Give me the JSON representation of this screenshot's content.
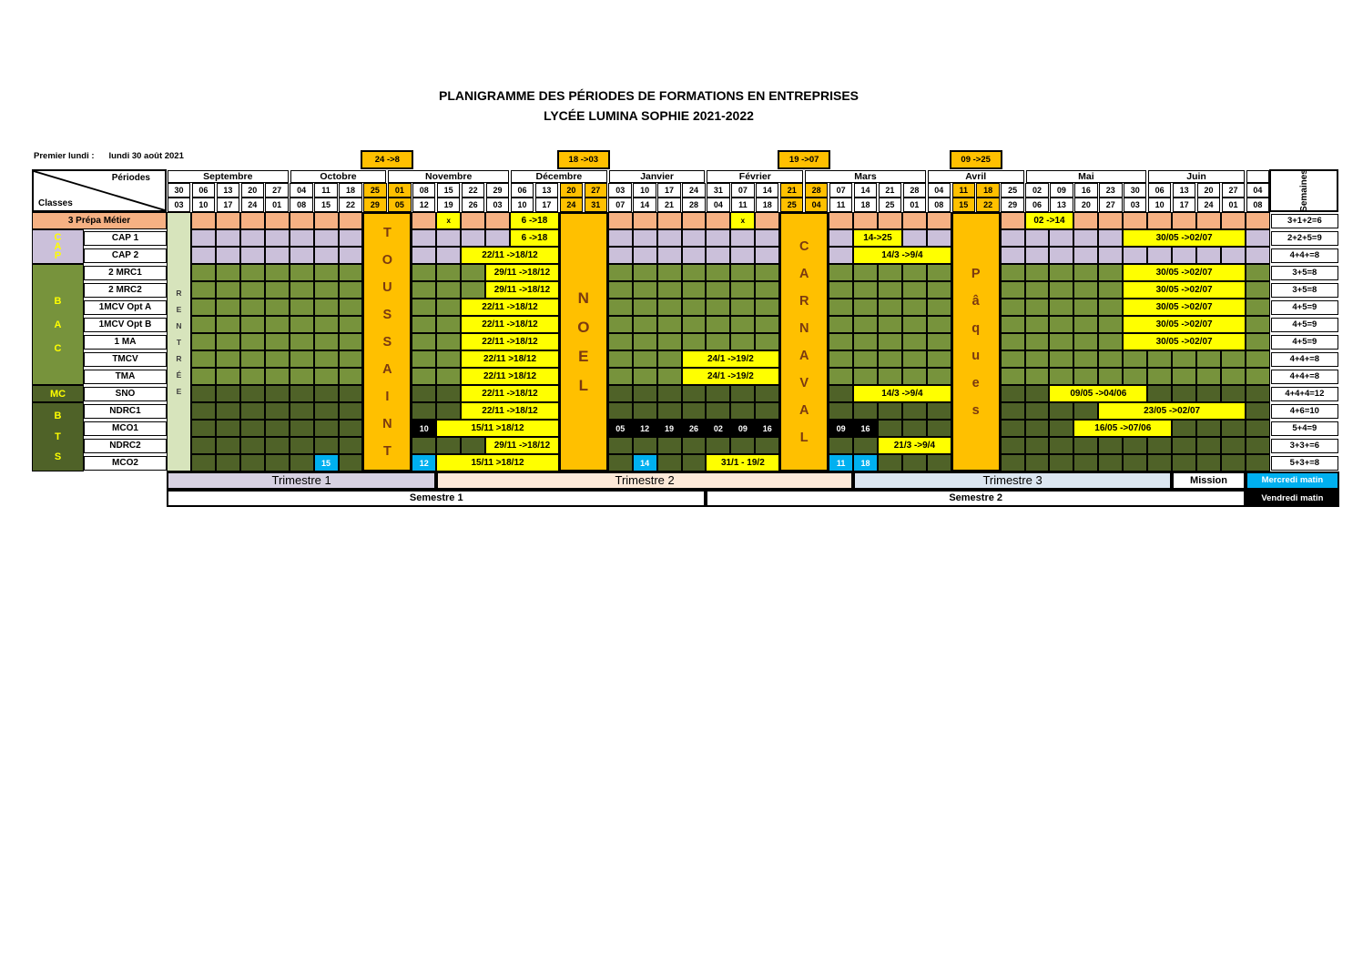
{
  "title": {
    "line1": "PLANIGRAMME DES PÉRIODES DE FORMATIONS EN ENTREPRISES",
    "line2": "LYCÉE LUMINA SOPHIE 2021-2022"
  },
  "first_monday": {
    "label": "Premier lundi :",
    "value": "lundi 30 août 2021"
  },
  "corner": {
    "top_label": "Périodes",
    "bottom_label": "Classes"
  },
  "semaines_header": "Semaines",
  "colors": {
    "salmon": "#F6B183",
    "purple": "#CBC0DA",
    "green": "#77933C",
    "dark_green": "#4F6228",
    "rentree_green": "#D7E4BC",
    "vacation_orange": "#FFC000",
    "bar_yellow": "#FFFF00",
    "day_blue": "#00B0F0",
    "day_black": "#000000",
    "vacation_letter": "#7B3A10",
    "group_letter": "#FFFF00",
    "trimestre1_bg": "#D7D1E2",
    "trimestre2_bg": "#FDE9D9",
    "trimestre3_bg": "#DCE6F1"
  },
  "months": [
    {
      "name": "Septembre",
      "span": 5
    },
    {
      "name": "Octobre",
      "span": 4
    },
    {
      "name": "Novembre",
      "span": 5
    },
    {
      "name": "Décembre",
      "span": 4
    },
    {
      "name": "Janvier",
      "span": 4
    },
    {
      "name": "Février",
      "span": 4
    },
    {
      "name": "Mars",
      "span": 5
    },
    {
      "name": "Avril",
      "span": 4
    },
    {
      "name": "Mai",
      "span": 5
    },
    {
      "name": "Juin",
      "span": 4
    },
    {
      "name": "",
      "span": 1
    }
  ],
  "weeks": [
    {
      "s": "30",
      "e": "03"
    },
    {
      "s": "06",
      "e": "10"
    },
    {
      "s": "13",
      "e": "17"
    },
    {
      "s": "20",
      "e": "24"
    },
    {
      "s": "27",
      "e": "01"
    },
    {
      "s": "04",
      "e": "08"
    },
    {
      "s": "11",
      "e": "15"
    },
    {
      "s": "18",
      "e": "22"
    },
    {
      "s": "25",
      "e": "29",
      "v": true
    },
    {
      "s": "01",
      "e": "05",
      "v": true
    },
    {
      "s": "08",
      "e": "12"
    },
    {
      "s": "15",
      "e": "19"
    },
    {
      "s": "22",
      "e": "26"
    },
    {
      "s": "29",
      "e": "03"
    },
    {
      "s": "06",
      "e": "10"
    },
    {
      "s": "13",
      "e": "17"
    },
    {
      "s": "20",
      "e": "24",
      "v": true
    },
    {
      "s": "27",
      "e": "31",
      "v": true
    },
    {
      "s": "03",
      "e": "07"
    },
    {
      "s": "10",
      "e": "14"
    },
    {
      "s": "17",
      "e": "21"
    },
    {
      "s": "24",
      "e": "28"
    },
    {
      "s": "31",
      "e": "04"
    },
    {
      "s": "07",
      "e": "11"
    },
    {
      "s": "14",
      "e": "18"
    },
    {
      "s": "21",
      "e": "25",
      "v": true
    },
    {
      "s": "28",
      "e": "04",
      "v": true
    },
    {
      "s": "07",
      "e": "11"
    },
    {
      "s": "14",
      "e": "18"
    },
    {
      "s": "21",
      "e": "25"
    },
    {
      "s": "28",
      "e": "01"
    },
    {
      "s": "04",
      "e": "08"
    },
    {
      "s": "11",
      "e": "15",
      "v": true
    },
    {
      "s": "18",
      "e": "22",
      "v": true
    },
    {
      "s": "25",
      "e": "29"
    },
    {
      "s": "02",
      "e": "06"
    },
    {
      "s": "09",
      "e": "13"
    },
    {
      "s": "16",
      "e": "20"
    },
    {
      "s": "23",
      "e": "27"
    },
    {
      "s": "30",
      "e": "03"
    },
    {
      "s": "06",
      "e": "10"
    },
    {
      "s": "13",
      "e": "17"
    },
    {
      "s": "20",
      "e": "24"
    },
    {
      "s": "27",
      "e": "01"
    },
    {
      "s": "04",
      "e": "08"
    }
  ],
  "rentree": {
    "name": "RENTRÉE"
  },
  "vacations": [
    {
      "name": "TOUSSAINT",
      "range_label": "24 ->8",
      "col": 8,
      "span": 2
    },
    {
      "name": "NOEL",
      "range_label": "18 ->03",
      "col": 16,
      "span": 2
    },
    {
      "name": "CARNAVAL",
      "range_label": "19 ->07",
      "col": 25,
      "span": 2
    },
    {
      "name": "Pâques",
      "range_label": "09 ->25",
      "col": 32,
      "span": 2
    }
  ],
  "groups": [
    {
      "name": "CAP",
      "row_start": 1,
      "row_end": 2,
      "color_key": "purple",
      "stacked": true
    },
    {
      "name": "BAC",
      "row_start": 3,
      "row_end": 9,
      "color_key": "green",
      "stacked": true
    },
    {
      "name": "MC",
      "row_start": 10,
      "row_end": 10,
      "color_key": "dark_green",
      "stacked": false
    },
    {
      "name": "BTS",
      "row_start": 11,
      "row_end": 14,
      "color_key": "dark_green",
      "stacked": true
    }
  ],
  "rows": [
    {
      "label": "3 Prépa Métier",
      "full_label": true,
      "color_key": "salmon",
      "weeks_total": "3+1+2=6",
      "marks": [
        {
          "kind": "x",
          "col": 11,
          "text": "x"
        },
        {
          "kind": "bar",
          "col": 14,
          "span": 2,
          "text": "6 ->18"
        },
        {
          "kind": "x",
          "col": 23,
          "text": "x"
        },
        {
          "kind": "bar",
          "col": 35,
          "span": 2,
          "text": "02 ->14"
        }
      ]
    },
    {
      "label": "CAP 1",
      "color_key": "purple",
      "weeks_total": "2+2+5=9",
      "marks": [
        {
          "kind": "bar",
          "col": 14,
          "span": 2,
          "text": "6 ->18"
        },
        {
          "kind": "bar",
          "col": 28,
          "span": 2,
          "text": "14->25"
        },
        {
          "kind": "bar",
          "col": 39,
          "span": 5,
          "text": "30/05 ->02/07"
        }
      ]
    },
    {
      "label": "CAP 2",
      "color_key": "purple",
      "weeks_total": "4+4+=8",
      "marks": [
        {
          "kind": "bar",
          "col": 12,
          "span": 4,
          "text": "22/11 ->18/12"
        },
        {
          "kind": "bar",
          "col": 28,
          "span": 4,
          "text": "14/3 ->9/4"
        }
      ]
    },
    {
      "label": "2 MRC1",
      "color_key": "green",
      "weeks_total": "3+5=8",
      "marks": [
        {
          "kind": "bar",
          "col": 13,
          "span": 3,
          "text": "29/11 ->18/12"
        },
        {
          "kind": "bar",
          "col": 39,
          "span": 5,
          "text": "30/05 ->02/07"
        }
      ]
    },
    {
      "label": "2 MRC2",
      "color_key": "green",
      "weeks_total": "3+5=8",
      "marks": [
        {
          "kind": "bar",
          "col": 13,
          "span": 3,
          "text": "29/11 ->18/12"
        },
        {
          "kind": "bar",
          "col": 39,
          "span": 5,
          "text": "30/05 ->02/07"
        }
      ]
    },
    {
      "label": "1MCV Opt A",
      "color_key": "green",
      "weeks_total": "4+5=9",
      "marks": [
        {
          "kind": "bar",
          "col": 12,
          "span": 4,
          "text": "22/11 ->18/12"
        },
        {
          "kind": "bar",
          "col": 39,
          "span": 5,
          "text": "30/05 ->02/07"
        }
      ]
    },
    {
      "label": "1MCV Opt B",
      "color_key": "green",
      "weeks_total": "4+5=9",
      "marks": [
        {
          "kind": "bar",
          "col": 12,
          "span": 4,
          "text": "22/11 ->18/12"
        },
        {
          "kind": "bar",
          "col": 39,
          "span": 5,
          "text": "30/05 ->02/07"
        }
      ]
    },
    {
      "label": "1 MA",
      "color_key": "green",
      "weeks_total": "4+5=9",
      "marks": [
        {
          "kind": "bar",
          "col": 12,
          "span": 4,
          "text": "22/11 ->18/12"
        },
        {
          "kind": "bar",
          "col": 39,
          "span": 5,
          "text": "30/05 ->02/07"
        }
      ]
    },
    {
      "label": "TMCV",
      "color_key": "green",
      "weeks_total": "4+4+=8",
      "marks": [
        {
          "kind": "bar",
          "col": 12,
          "span": 4,
          "text": "22/11 >18/12"
        },
        {
          "kind": "bar",
          "col": 21,
          "span": 4,
          "text": "24/1 ->19/2"
        }
      ]
    },
    {
      "label": "TMA",
      "color_key": "green",
      "weeks_total": "4+4+=8",
      "marks": [
        {
          "kind": "bar",
          "col": 12,
          "span": 4,
          "text": "22/11 >18/12"
        },
        {
          "kind": "bar",
          "col": 21,
          "span": 4,
          "text": "24/1 ->19/2"
        }
      ]
    },
    {
      "label": "SNO",
      "color_key": "dark_green",
      "weeks_total": "4+4+4=12",
      "marks": [
        {
          "kind": "bar",
          "col": 12,
          "span": 4,
          "text": "22/11 ->18/12"
        },
        {
          "kind": "bar",
          "col": 28,
          "span": 4,
          "text": "14/3 ->9/4"
        },
        {
          "kind": "bar",
          "col": 36,
          "span": 4,
          "text": "09/05 ->04/06"
        }
      ]
    },
    {
      "label": "NDRC1",
      "color_key": "dark_green",
      "weeks_total": "4+6=10",
      "marks": [
        {
          "kind": "bar",
          "col": 12,
          "span": 4,
          "text": "22/11 ->18/12"
        },
        {
          "kind": "bar",
          "col": 38,
          "span": 6,
          "text": "23/05 ->02/07"
        }
      ]
    },
    {
      "label": "MCO1",
      "color_key": "dark_green",
      "weeks_total": "5+4=9",
      "marks": [
        {
          "kind": "black",
          "col": 10,
          "text": "10"
        },
        {
          "kind": "bar",
          "col": 11,
          "span": 5,
          "text": "15/11 >18/12"
        },
        {
          "kind": "black",
          "col": 18,
          "text": "05"
        },
        {
          "kind": "black",
          "col": 19,
          "text": "12"
        },
        {
          "kind": "black",
          "col": 20,
          "text": "19"
        },
        {
          "kind": "black",
          "col": 21,
          "text": "26"
        },
        {
          "kind": "black",
          "col": 22,
          "text": "02"
        },
        {
          "kind": "black",
          "col": 23,
          "text": "09"
        },
        {
          "kind": "black",
          "col": 24,
          "text": "16"
        },
        {
          "kind": "black",
          "col": 27,
          "text": "09"
        },
        {
          "kind": "black",
          "col": 28,
          "text": "16"
        },
        {
          "kind": "bar",
          "col": 37,
          "span": 4,
          "text": "16/05 ->07/06"
        }
      ]
    },
    {
      "label": "NDRC2",
      "color_key": "dark_green",
      "weeks_total": "3+3+=6",
      "marks": [
        {
          "kind": "bar",
          "col": 13,
          "span": 3,
          "text": "29/11 ->18/12"
        },
        {
          "kind": "bar",
          "col": 29,
          "span": 3,
          "text": "21/3 ->9/4"
        }
      ]
    },
    {
      "label": "MCO2",
      "color_key": "dark_green",
      "weeks_total": "5+3+=8",
      "marks": [
        {
          "kind": "blue",
          "col": 6,
          "text": "15"
        },
        {
          "kind": "blue",
          "col": 10,
          "text": "12"
        },
        {
          "kind": "bar",
          "col": 11,
          "span": 5,
          "text": "15/11 >18/12"
        },
        {
          "kind": "blue",
          "col": 19,
          "text": "14"
        },
        {
          "kind": "bar",
          "col": 22,
          "span": 3,
          "text": "31/1 - 19/2"
        },
        {
          "kind": "blue",
          "col": 27,
          "text": "11"
        },
        {
          "kind": "blue",
          "col": 28,
          "text": "18"
        }
      ]
    }
  ],
  "footer": {
    "trimestres": [
      {
        "kind": "trimestre",
        "label": "Trimestre 1",
        "col": 0,
        "span": 11,
        "bg_key": "trimestre1_bg"
      },
      {
        "kind": "trimestre",
        "label": "Trimestre 2",
        "col": 11,
        "span": 17,
        "bg_key": "trimestre2_bg"
      },
      {
        "kind": "trimestre",
        "label": "Trimestre 3",
        "col": 28,
        "span": 13,
        "bg_key": "trimestre3_bg"
      },
      {
        "kind": "mission",
        "label": "Mission",
        "col": 41,
        "span": 3,
        "bg_key": "white"
      },
      {
        "kind": "legend_mercredi",
        "label": "Mercredi matin",
        "col": 44,
        "span": 1,
        "to_edge": true,
        "bg_key": "day_blue"
      }
    ],
    "semestres": [
      {
        "kind": "semestre",
        "label": "Semestre 1",
        "col": 0,
        "span": 22,
        "bg_key": "white"
      },
      {
        "kind": "semestre",
        "label": "Semestre 2",
        "col": 22,
        "span": 22,
        "bg_key": "white"
      },
      {
        "kind": "legend_vendredi",
        "label": "Vendredi matin",
        "col": 44,
        "span": 1,
        "to_edge": true,
        "bg_key": "day_black"
      }
    ]
  }
}
